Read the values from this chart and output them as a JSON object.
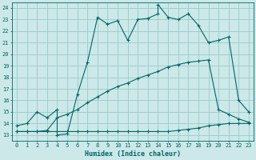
{
  "xlabel": "Humidex (Indice chaleur)",
  "xlim": [
    -0.5,
    23.5
  ],
  "ylim": [
    12.5,
    24.5
  ],
  "xticks": [
    0,
    1,
    2,
    3,
    4,
    5,
    6,
    7,
    8,
    9,
    10,
    11,
    12,
    13,
    14,
    15,
    16,
    17,
    18,
    19,
    20,
    21,
    22,
    23
  ],
  "yticks": [
    13,
    14,
    15,
    16,
    17,
    18,
    19,
    20,
    21,
    22,
    23,
    24
  ],
  "bg_color": "#cce8e8",
  "grid_color": "#99cccc",
  "line_color": "#006666",
  "line1_x": [
    0,
    1,
    2,
    3,
    4,
    4,
    5,
    6,
    7,
    8,
    9,
    10,
    11,
    12,
    13,
    14,
    14,
    15,
    16,
    17,
    18,
    19,
    20,
    21,
    22,
    23
  ],
  "line1_y": [
    13.8,
    14.0,
    15.0,
    14.5,
    15.2,
    13.0,
    13.1,
    16.5,
    19.3,
    23.2,
    22.6,
    22.9,
    21.2,
    23.0,
    23.1,
    23.5,
    24.3,
    23.2,
    23.0,
    23.5,
    22.5,
    21.0,
    21.2,
    21.5,
    16.0,
    15.0
  ],
  "line2_x": [
    0,
    1,
    2,
    3,
    4,
    5,
    6,
    7,
    8,
    9,
    10,
    11,
    12,
    13,
    14,
    15,
    16,
    17,
    18,
    19,
    20,
    21,
    22,
    23
  ],
  "line2_y": [
    13.3,
    13.3,
    13.3,
    13.3,
    13.3,
    13.3,
    13.3,
    13.3,
    13.3,
    13.3,
    13.3,
    13.3,
    13.3,
    13.3,
    13.3,
    13.3,
    13.4,
    13.5,
    13.6,
    13.8,
    13.9,
    14.0,
    14.0,
    14.0
  ],
  "line3_x": [
    0,
    1,
    2,
    3,
    4,
    5,
    6,
    7,
    8,
    9,
    10,
    11,
    12,
    13,
    14,
    15,
    16,
    17,
    18,
    19,
    20,
    21,
    22,
    23
  ],
  "line3_y": [
    13.3,
    13.3,
    13.3,
    13.4,
    14.5,
    14.8,
    15.2,
    15.8,
    16.3,
    16.8,
    17.2,
    17.5,
    17.9,
    18.2,
    18.5,
    18.9,
    19.1,
    19.3,
    19.4,
    19.5,
    15.2,
    14.8,
    14.4,
    14.1
  ]
}
